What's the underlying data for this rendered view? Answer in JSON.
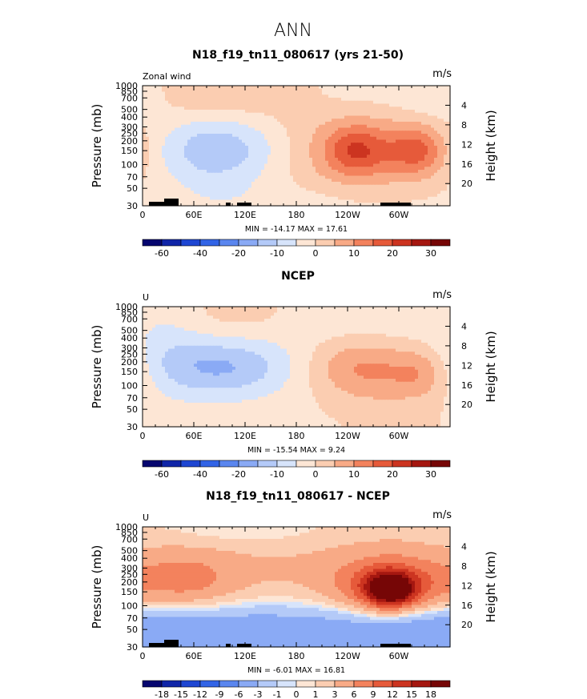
{
  "figure_title": "ANN",
  "chart_data": [
    {
      "type": "heatmap",
      "title": "N18_f19_tn11_080617 (yrs 21-50)",
      "left_label": "Zonal wind",
      "units": "m/s",
      "ylabel": "Pressure (mb)",
      "ylabel_right": "Height (km)",
      "yticks": [
        "30",
        "50",
        "70",
        "100",
        "150",
        "200",
        "250",
        "300",
        "400",
        "500",
        "700",
        "850",
        "1000"
      ],
      "ylim": [
        1000,
        30
      ],
      "yticks_right": [
        "20",
        "16",
        "12",
        "8",
        "4"
      ],
      "xticks": [
        "0",
        "60E",
        "120E",
        "180",
        "120W",
        "60W"
      ],
      "xlim": [
        0,
        360
      ],
      "min_max_text": "MIN = -14.17   MAX = 17.61",
      "min": -14.17,
      "max": 17.61,
      "colorbar_labels": [
        "-60",
        "-40",
        "-20",
        "-10",
        "0",
        "10",
        "20",
        "30"
      ],
      "features": [
        {
          "lon": 90,
          "p": 150,
          "value": -12,
          "sx": 52,
          "sy": 0.7
        },
        {
          "lon": 90,
          "p": 150,
          "value": -3,
          "sx": 100,
          "sy": 1.1
        },
        {
          "lon": 250,
          "p": 150,
          "value": 8,
          "sx": 80,
          "sy": 1.1
        },
        {
          "lon": 250,
          "p": 150,
          "value": 14,
          "sx": 26,
          "sy": 0.5
        },
        {
          "lon": 322,
          "p": 150,
          "value": 14,
          "sx": 24,
          "sy": 0.5
        },
        {
          "lon": 100,
          "p": 700,
          "value": 5,
          "sx": 70,
          "sy": 0.5
        },
        {
          "lon": 250,
          "p": 700,
          "value": -4,
          "sx": 80,
          "sy": 0.5
        },
        {
          "lon": 345,
          "p": 700,
          "value": -4,
          "sx": 30,
          "sy": 0.5
        },
        {
          "lon": 180,
          "p": 30,
          "value": -4,
          "sx": 130,
          "sy": 0.5
        }
      ]
    },
    {
      "type": "heatmap",
      "title": "NCEP",
      "left_label": "U",
      "units": "m/s",
      "ylabel": "Pressure (mb)",
      "ylabel_right": "Height (km)",
      "yticks": [
        "30",
        "50",
        "70",
        "100",
        "150",
        "200",
        "250",
        "300",
        "400",
        "500",
        "700",
        "850",
        "1000"
      ],
      "ylim": [
        1000,
        30
      ],
      "yticks_right": [
        "20",
        "16",
        "12",
        "8",
        "4"
      ],
      "xticks": [
        "0",
        "60E",
        "120E",
        "180",
        "120W",
        "60W"
      ],
      "xlim": [
        0,
        360
      ],
      "min_max_text": "MIN = -15.54   MAX =   9.24",
      "min": -15.54,
      "max": 9.24,
      "colorbar_labels": [
        "-60",
        "-40",
        "-20",
        "-10",
        "0",
        "10",
        "20",
        "30"
      ],
      "features": [
        {
          "lon": 95,
          "p": 170,
          "value": -12,
          "sx": 55,
          "sy": 0.6
        },
        {
          "lon": 95,
          "p": 170,
          "value": -4,
          "sx": 110,
          "sy": 1.1
        },
        {
          "lon": 30,
          "p": 400,
          "value": -4,
          "sx": 30,
          "sy": 1.2
        },
        {
          "lon": 210,
          "p": 150,
          "value": -3,
          "sx": 50,
          "sy": 1.5
        },
        {
          "lon": 250,
          "p": 150,
          "value": 6,
          "sx": 70,
          "sy": 1.0
        },
        {
          "lon": 250,
          "p": 170,
          "value": 8,
          "sx": 40,
          "sy": 0.6
        },
        {
          "lon": 325,
          "p": 140,
          "value": 8,
          "sx": 25,
          "sy": 0.5
        },
        {
          "lon": 100,
          "p": 700,
          "value": 3,
          "sx": 60,
          "sy": 0.5
        },
        {
          "lon": 280,
          "p": 600,
          "value": -4,
          "sx": 60,
          "sy": 0.6
        }
      ]
    },
    {
      "type": "heatmap",
      "title": "N18_f19_tn11_080617 - NCEP",
      "left_label": "U",
      "units": "m/s",
      "ylabel": "Pressure (mb)",
      "ylabel_right": "Height (km)",
      "yticks": [
        "30",
        "50",
        "70",
        "100",
        "150",
        "200",
        "250",
        "300",
        "400",
        "500",
        "700",
        "850",
        "1000"
      ],
      "ylim": [
        1000,
        30
      ],
      "yticks_right": [
        "20",
        "16",
        "12",
        "8",
        "4"
      ],
      "xticks": [
        "0",
        "60E",
        "120E",
        "180",
        "120W",
        "60W"
      ],
      "xlim": [
        0,
        360
      ],
      "min_max_text": "MIN =  -6.01   MAX =  16.81",
      "min": -6.01,
      "max": 16.81,
      "colorbar_labels": [
        "-18",
        "-15",
        "-12",
        "-9",
        "-6",
        "-3",
        "-1",
        "0",
        "1",
        "3",
        "6",
        "9",
        "12",
        "15",
        "18"
      ],
      "features": [
        {
          "lon": 180,
          "p": 30,
          "value": -2,
          "sx": 250,
          "sy": 0.7
        },
        {
          "lon": 90,
          "p": 60,
          "value": -4,
          "sx": 100,
          "sy": 0.5
        },
        {
          "lon": 290,
          "p": 60,
          "value": -4,
          "sx": 70,
          "sy": 0.5
        },
        {
          "lon": 180,
          "p": 350,
          "value": 3,
          "sx": 260,
          "sy": 1.0
        },
        {
          "lon": 50,
          "p": 200,
          "value": 5,
          "sx": 40,
          "sy": 0.6
        },
        {
          "lon": 290,
          "p": 170,
          "value": 10,
          "sx": 45,
          "sy": 0.6
        },
        {
          "lon": 290,
          "p": 160,
          "value": 16,
          "sx": 20,
          "sy": 0.35
        },
        {
          "lon": 120,
          "p": 850,
          "value": -2,
          "sx": 80,
          "sy": 0.4
        }
      ]
    }
  ]
}
